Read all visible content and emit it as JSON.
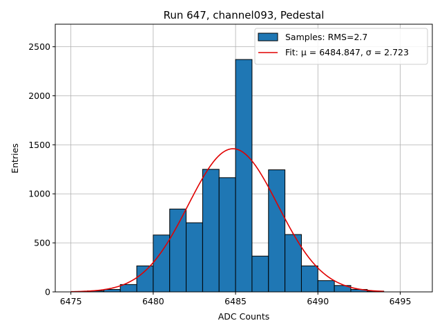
{
  "chart_data": {
    "type": "bar",
    "title": "Run 647, channel093, Pedestal",
    "xlabel": "ADC Counts",
    "ylabel": "Entries",
    "xlim": [
      6474.05,
      6496.95
    ],
    "ylim": [
      0,
      2730
    ],
    "xticks": [
      6475,
      6480,
      6485,
      6490,
      6495
    ],
    "yticks": [
      0,
      500,
      1000,
      1500,
      2000,
      2500
    ],
    "grid": true,
    "bin_width": 1,
    "bins": [
      {
        "x": 6476,
        "value": 10
      },
      {
        "x": 6477,
        "value": 25
      },
      {
        "x": 6478,
        "value": 75
      },
      {
        "x": 6479,
        "value": 265
      },
      {
        "x": 6480,
        "value": 580
      },
      {
        "x": 6481,
        "value": 845
      },
      {
        "x": 6482,
        "value": 705
      },
      {
        "x": 6483,
        "value": 1250
      },
      {
        "x": 6484,
        "value": 1165
      },
      {
        "x": 6485,
        "value": 2370
      },
      {
        "x": 6486,
        "value": 365
      },
      {
        "x": 6487,
        "value": 1245
      },
      {
        "x": 6488,
        "value": 585
      },
      {
        "x": 6489,
        "value": 265
      },
      {
        "x": 6490,
        "value": 115
      },
      {
        "x": 6491,
        "value": 65
      },
      {
        "x": 6492,
        "value": 25
      },
      {
        "x": 6493,
        "value": 8
      }
    ],
    "fit": {
      "mu": 6484.847,
      "sigma": 2.723,
      "amplitude": 1460,
      "x_range": [
        6475,
        6494
      ]
    },
    "legend": {
      "location": "upper right",
      "samples_label": "Samples: RMS=2.7",
      "fit_label": "Fit: μ = 6484.847, σ = 2.723"
    },
    "colors": {
      "bars": "#1f77b4",
      "bar_edge": "#000000",
      "fit_line": "#e00000",
      "grid": "#b0b0b0"
    }
  }
}
